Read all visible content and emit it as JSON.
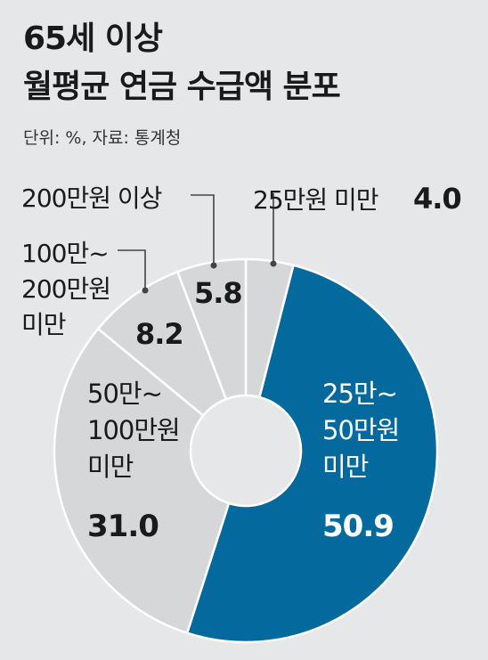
{
  "header": {
    "title_line1": "65세 이상",
    "title_line2": "월평균 연금 수급액 분포",
    "subtitle": "단위: %, 자료: 통계청"
  },
  "colors": {
    "background": "#e6e7e9",
    "highlight": "#046a9e",
    "slice": "#d6d7d9",
    "ring_stroke": "#ffffff",
    "leader_line": "#444444"
  },
  "chart_data": {
    "type": "pie",
    "variant": "donut",
    "unit": "%",
    "title": "65세 이상 월평균 연금 수급액 분포",
    "source": "통계청",
    "slices": [
      {
        "label": "25만원 미만",
        "value": 4.0,
        "value_label": "4.0",
        "highlight": false
      },
      {
        "label": "25만~ 50만원 미만",
        "value": 50.9,
        "value_label": "50.9",
        "highlight": true
      },
      {
        "label": "50만~ 100만원 미만",
        "value": 31.0,
        "value_label": "31.0",
        "highlight": false
      },
      {
        "label": "100만~ 200만원 미만",
        "value": 8.2,
        "value_label": "8.2",
        "highlight": false
      },
      {
        "label": "200만원 이상",
        "value": 5.8,
        "value_label": "5.8",
        "highlight": false
      }
    ],
    "label_lines": [
      [
        "25만원 미만"
      ],
      [
        "25만~",
        "50만원",
        "미만"
      ],
      [
        "50만~",
        "100만원",
        "미만"
      ],
      [
        "100만~",
        "200만원",
        "미만"
      ],
      [
        "200만원 이상"
      ]
    ]
  }
}
